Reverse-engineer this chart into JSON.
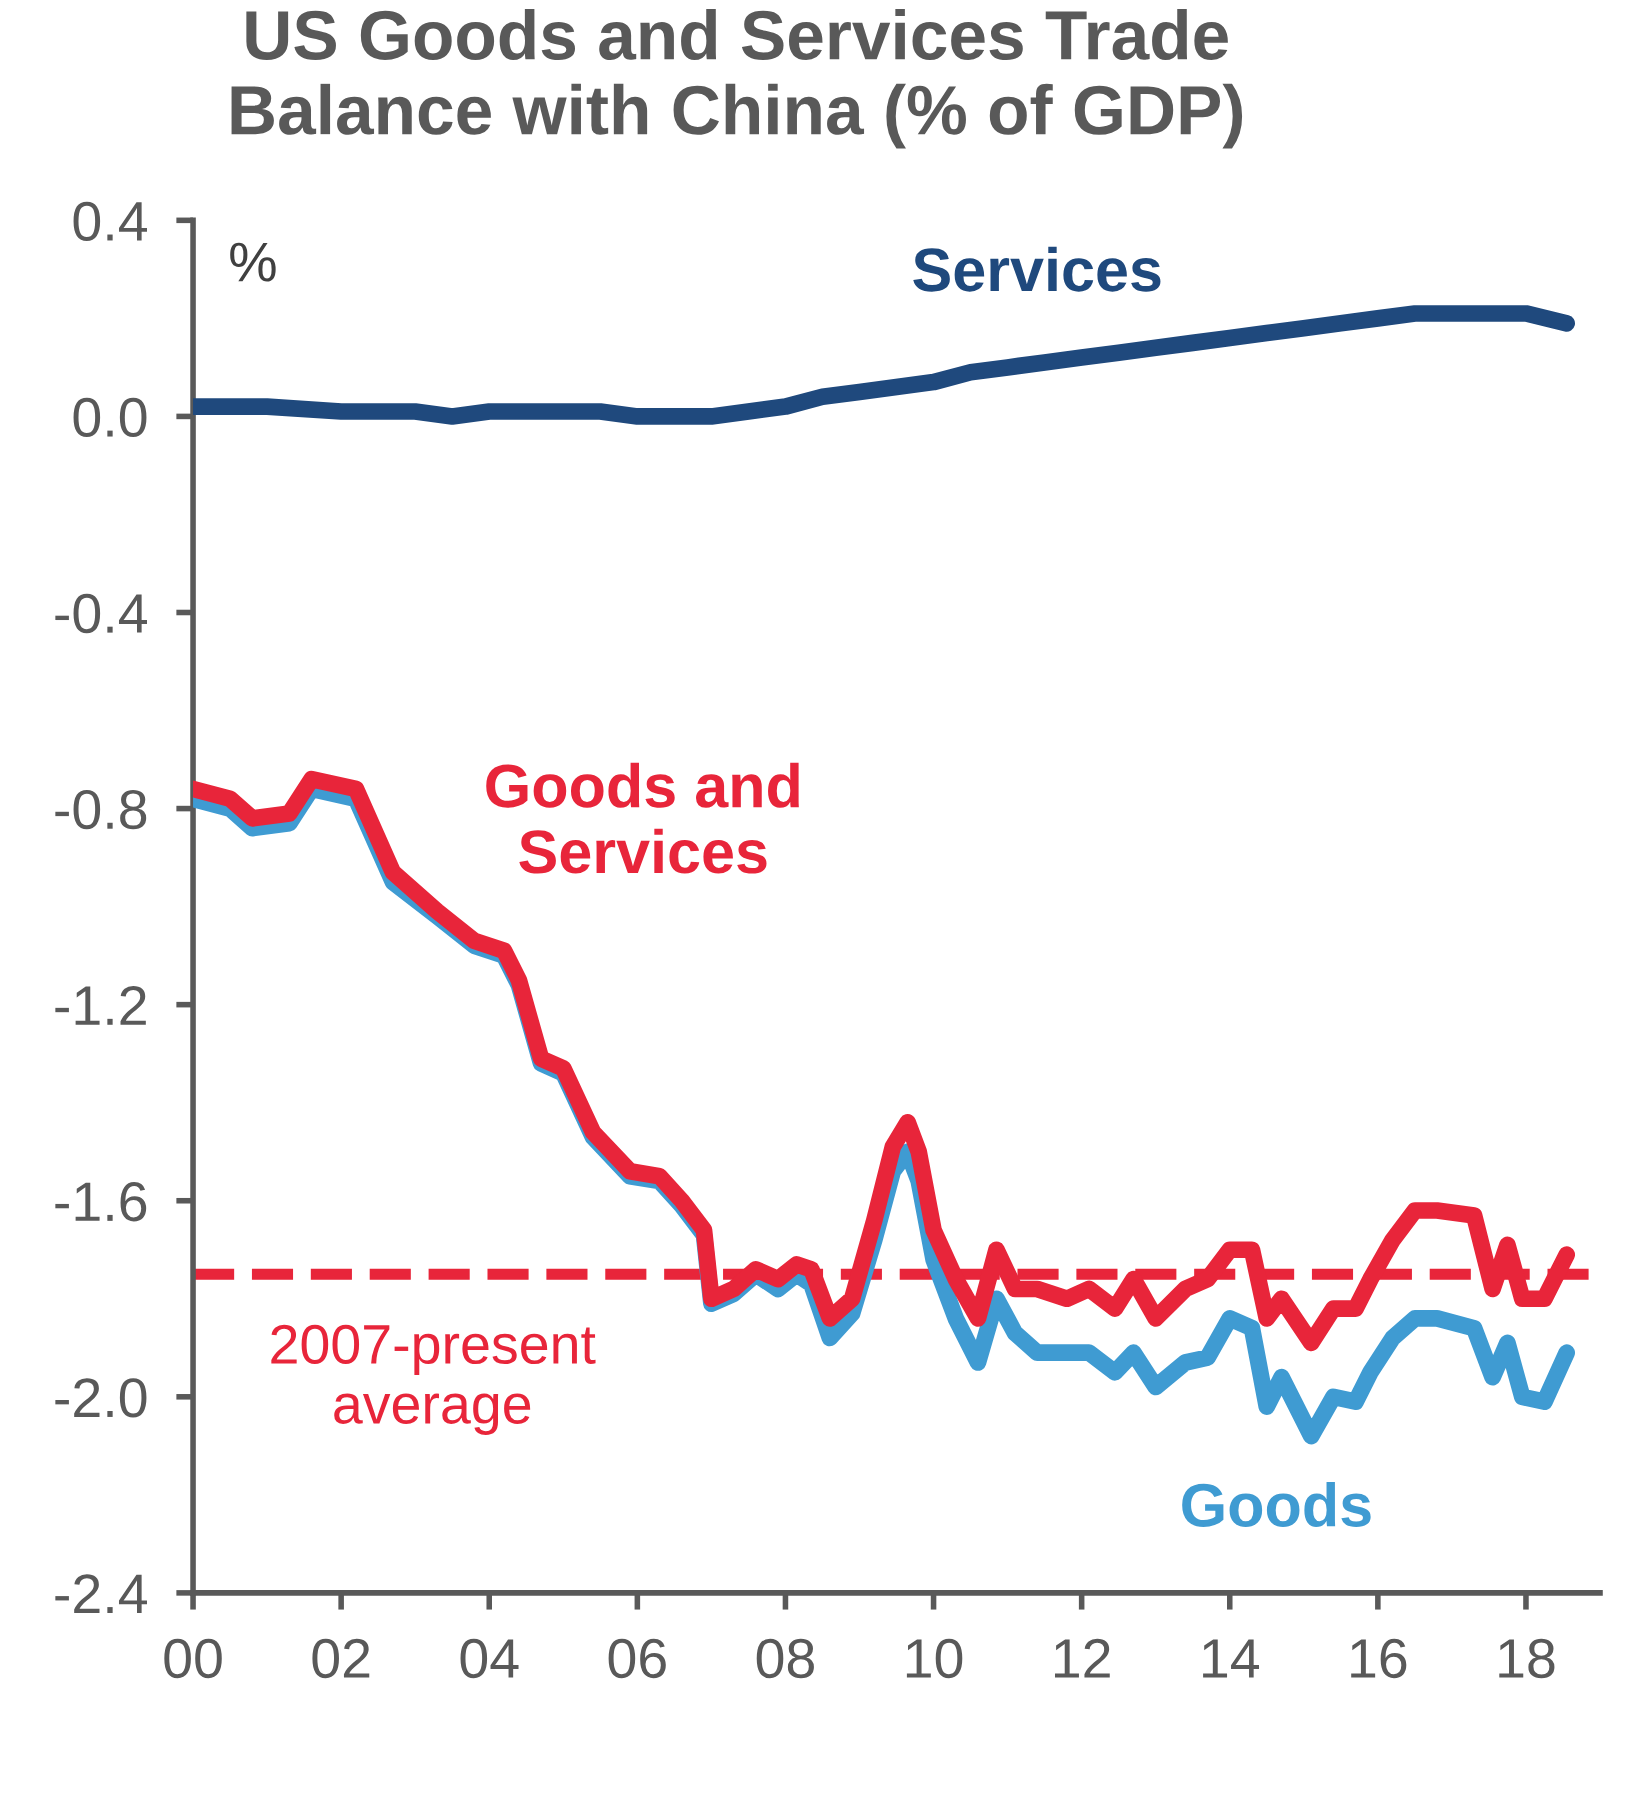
{
  "chart_data": {
    "type": "line",
    "title": "US Goods and Services Trade\nBalance with China (% of GDP)",
    "ylabel": "%",
    "xlim": [
      2000,
      2019
    ],
    "xticks": [
      {
        "value": 2000,
        "label": "00"
      },
      {
        "value": 2002,
        "label": "02"
      },
      {
        "value": 2004,
        "label": "04"
      },
      {
        "value": 2006,
        "label": "06"
      },
      {
        "value": 2008,
        "label": "08"
      },
      {
        "value": 2010,
        "label": "10"
      },
      {
        "value": 2012,
        "label": "12"
      },
      {
        "value": 2014,
        "label": "14"
      },
      {
        "value": 2016,
        "label": "16"
      },
      {
        "value": 2018,
        "label": "18"
      }
    ],
    "ylim": [
      -2.4,
      0.4
    ],
    "yticks": [
      {
        "value": 0.4,
        "label": "0.4"
      },
      {
        "value": 0.0,
        "label": "0.0"
      },
      {
        "value": -0.4,
        "label": "-0.4"
      },
      {
        "value": -0.8,
        "label": "-0.8"
      },
      {
        "value": -1.2,
        "label": "-1.2"
      },
      {
        "value": -1.6,
        "label": "-1.6"
      },
      {
        "value": -2.0,
        "label": "-2.0"
      },
      {
        "value": -2.4,
        "label": "-2.4"
      }
    ],
    "grid": false,
    "legend": false,
    "line_style": "solid",
    "marker": "none",
    "series": [
      {
        "name": "Services",
        "color": "#1f497d",
        "x": [
          2000,
          2001,
          2002,
          2003,
          2003.5,
          2004,
          2005,
          2005.5,
          2006,
          2006.5,
          2007,
          2007.5,
          2008,
          2008.5,
          2009,
          2009.5,
          2010,
          2010.5,
          2011,
          2011.5,
          2012,
          2012.5,
          2013,
          2013.5,
          2014,
          2014.5,
          2015,
          2015.5,
          2016,
          2016.5,
          2017,
          2017.5,
          2018,
          2018.55
        ],
        "values": [
          0.02,
          0.02,
          0.01,
          0.01,
          0.0,
          0.01,
          0.01,
          0.01,
          0.0,
          0.0,
          0.0,
          0.01,
          0.02,
          0.04,
          0.05,
          0.06,
          0.07,
          0.09,
          0.1,
          0.11,
          0.12,
          0.13,
          0.14,
          0.15,
          0.16,
          0.17,
          0.18,
          0.19,
          0.2,
          0.21,
          0.21,
          0.21,
          0.21,
          0.19
        ]
      },
      {
        "name": "Goods",
        "color": "#3f9bd2",
        "x": [
          2000,
          2000.5,
          2000.8,
          2001.3,
          2001.6,
          2002.2,
          2002.7,
          2003.3,
          2003.8,
          2004.2,
          2004.4,
          2004.7,
          2005.0,
          2005.4,
          2005.9,
          2006.3,
          2006.6,
          2006.9,
          2007.0,
          2007.3,
          2007.6,
          2007.9,
          2008.15,
          2008.35,
          2008.6,
          2008.9,
          2009.2,
          2009.45,
          2009.65,
          2009.8,
          2010.0,
          2010.3,
          2010.6,
          2010.85,
          2011.1,
          2011.4,
          2011.8,
          2012.1,
          2012.45,
          2012.7,
          2013.0,
          2013.4,
          2013.7,
          2014.0,
          2014.3,
          2014.5,
          2014.7,
          2015.1,
          2015.4,
          2015.7,
          2015.9,
          2016.2,
          2016.5,
          2016.8,
          2017.3,
          2017.55,
          2017.75,
          2017.95,
          2018.25,
          2018.55
        ],
        "values": [
          -0.78,
          -0.8,
          -0.84,
          -0.83,
          -0.76,
          -0.78,
          -0.95,
          -1.02,
          -1.08,
          -1.1,
          -1.16,
          -1.32,
          -1.34,
          -1.47,
          -1.55,
          -1.56,
          -1.61,
          -1.67,
          -1.81,
          -1.79,
          -1.75,
          -1.78,
          -1.75,
          -1.77,
          -1.88,
          -1.83,
          -1.68,
          -1.54,
          -1.5,
          -1.56,
          -1.72,
          -1.84,
          -1.93,
          -1.8,
          -1.87,
          -1.91,
          -1.91,
          -1.91,
          -1.95,
          -1.91,
          -1.98,
          -1.93,
          -1.92,
          -1.84,
          -1.86,
          -2.02,
          -1.96,
          -2.08,
          -2.0,
          -2.01,
          -1.95,
          -1.88,
          -1.84,
          -1.84,
          -1.86,
          -1.96,
          -1.89,
          -2.0,
          -2.01,
          -1.91
        ]
      },
      {
        "name": "Goods and\nServices",
        "color": "#e8253a",
        "x": [
          2000,
          2000.5,
          2000.8,
          2001.3,
          2001.6,
          2002.2,
          2002.7,
          2003.3,
          2003.8,
          2004.2,
          2004.4,
          2004.7,
          2005.0,
          2005.4,
          2005.9,
          2006.3,
          2006.6,
          2006.9,
          2007.0,
          2007.3,
          2007.6,
          2007.9,
          2008.15,
          2008.35,
          2008.6,
          2008.9,
          2009.2,
          2009.45,
          2009.65,
          2009.8,
          2010.0,
          2010.3,
          2010.6,
          2010.85,
          2011.1,
          2011.4,
          2011.8,
          2012.1,
          2012.45,
          2012.7,
          2013.0,
          2013.4,
          2013.7,
          2014.0,
          2014.3,
          2014.5,
          2014.7,
          2015.1,
          2015.4,
          2015.7,
          2015.9,
          2016.2,
          2016.5,
          2016.8,
          2017.3,
          2017.55,
          2017.75,
          2017.95,
          2018.25,
          2018.55
        ],
        "values": [
          -0.76,
          -0.78,
          -0.82,
          -0.81,
          -0.74,
          -0.76,
          -0.93,
          -1.01,
          -1.07,
          -1.09,
          -1.15,
          -1.31,
          -1.33,
          -1.46,
          -1.54,
          -1.55,
          -1.6,
          -1.66,
          -1.8,
          -1.78,
          -1.74,
          -1.76,
          -1.73,
          -1.74,
          -1.84,
          -1.8,
          -1.64,
          -1.49,
          -1.44,
          -1.5,
          -1.66,
          -1.76,
          -1.84,
          -1.7,
          -1.78,
          -1.78,
          -1.8,
          -1.78,
          -1.82,
          -1.76,
          -1.84,
          -1.78,
          -1.76,
          -1.7,
          -1.7,
          -1.84,
          -1.8,
          -1.89,
          -1.82,
          -1.82,
          -1.76,
          -1.68,
          -1.62,
          -1.62,
          -1.63,
          -1.78,
          -1.69,
          -1.8,
          -1.8,
          -1.71
        ]
      }
    ],
    "ref_lines": [
      {
        "axis": "y",
        "value": -1.75,
        "label": "2007-present\naverage",
        "color": "#e8253a",
        "line_style": "dashed"
      }
    ]
  }
}
